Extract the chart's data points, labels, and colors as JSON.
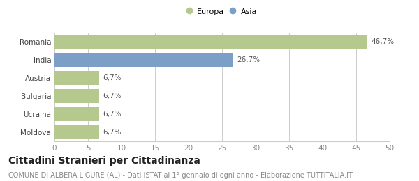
{
  "categories": [
    "Romania",
    "India",
    "Austria",
    "Bulgaria",
    "Ucraina",
    "Moldova"
  ],
  "values": [
    46.7,
    26.7,
    6.7,
    6.7,
    6.7,
    6.7
  ],
  "bar_colors": [
    "#b5c98e",
    "#7b9fc7",
    "#b5c98e",
    "#b5c98e",
    "#b5c98e",
    "#b5c98e"
  ],
  "bar_labels": [
    "46,7%",
    "26,7%",
    "6,7%",
    "6,7%",
    "6,7%",
    "6,7%"
  ],
  "legend": [
    {
      "label": "Europa",
      "color": "#b5c98e"
    },
    {
      "label": "Asia",
      "color": "#7b9fc7"
    }
  ],
  "xlim": [
    0,
    50
  ],
  "xticks": [
    0,
    5,
    10,
    15,
    20,
    25,
    30,
    35,
    40,
    45,
    50
  ],
  "title": "Cittadini Stranieri per Cittadinanza",
  "subtitle": "COMUNE DI ALBERA LIGURE (AL) - Dati ISTAT al 1° gennaio di ogni anno - Elaborazione TUTTITALIA.IT",
  "background_color": "#ffffff",
  "grid_color": "#cccccc",
  "title_fontsize": 10,
  "subtitle_fontsize": 7,
  "label_fontsize": 7.5,
  "tick_fontsize": 7.5,
  "bar_height": 0.75
}
